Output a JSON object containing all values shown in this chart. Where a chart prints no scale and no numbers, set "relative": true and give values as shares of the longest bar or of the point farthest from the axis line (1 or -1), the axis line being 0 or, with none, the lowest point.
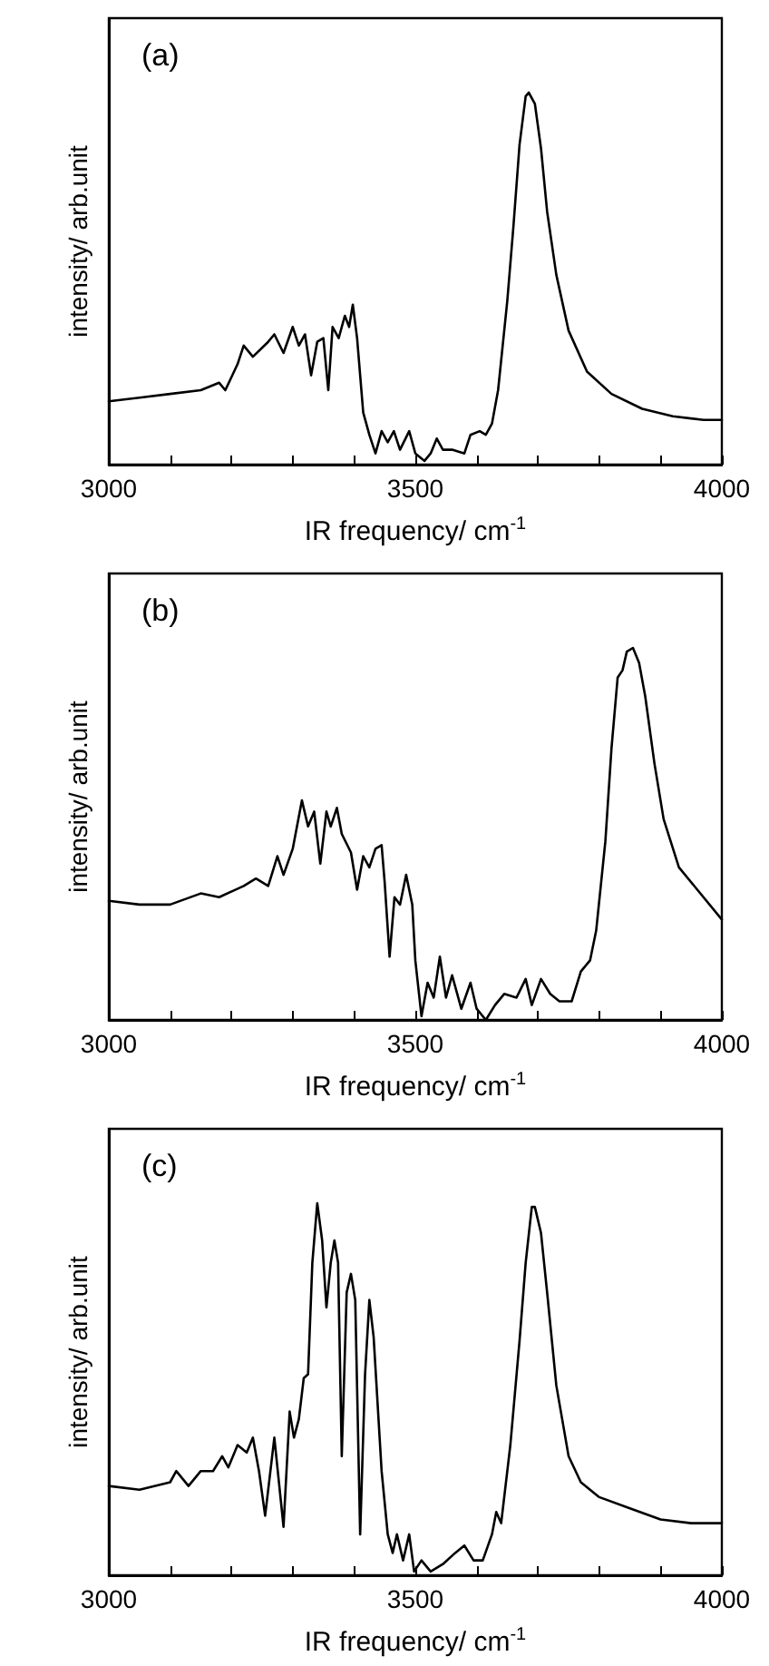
{
  "chart_data": [
    {
      "type": "line",
      "relative": true,
      "xlabel": "IR frequency/ cm$^{-1}$",
      "ylabel": "intensity/ arb.unit",
      "annotations": [
        "(a)"
      ],
      "xlim": [
        3000,
        4000
      ],
      "xticks": [
        3000,
        {
          "value": 3100,
          "label": null
        },
        {
          "value": 3200,
          "label": null
        },
        {
          "value": 3300,
          "label": null
        },
        {
          "value": 3400,
          "label": null
        },
        3500,
        {
          "value": 3600,
          "label": null
        },
        {
          "value": 3700,
          "label": null
        },
        {
          "value": 3800,
          "label": null
        },
        {
          "value": 3900,
          "label": null
        },
        4000
      ],
      "marker": "none",
      "line_style": "solid",
      "series": [
        {
          "color": "#000000",
          "x": [
            3000,
            3050,
            3100,
            3150,
            3180,
            3190,
            3210,
            3220,
            3235,
            3260,
            3270,
            3285,
            3300,
            3310,
            3320,
            3330,
            3340,
            3350,
            3358,
            3365,
            3375,
            3385,
            3392,
            3398,
            3405,
            3415,
            3425,
            3435,
            3445,
            3455,
            3465,
            3475,
            3490,
            3500,
            3515,
            3525,
            3535,
            3545,
            3560,
            3580,
            3590,
            3605,
            3615,
            3625,
            3635,
            3650,
            3660,
            3670,
            3680,
            3685,
            3695,
            3705,
            3715,
            3730,
            3750,
            3780,
            3820,
            3870,
            3920,
            3970,
            4000
          ],
          "values": [
            0.17,
            0.18,
            0.19,
            0.2,
            0.22,
            0.2,
            0.27,
            0.32,
            0.29,
            0.33,
            0.35,
            0.3,
            0.37,
            0.32,
            0.35,
            0.24,
            0.33,
            0.34,
            0.2,
            0.37,
            0.34,
            0.4,
            0.37,
            0.43,
            0.34,
            0.14,
            0.08,
            0.03,
            0.09,
            0.06,
            0.09,
            0.04,
            0.09,
            0.03,
            0.01,
            0.03,
            0.07,
            0.04,
            0.04,
            0.03,
            0.08,
            0.09,
            0.08,
            0.11,
            0.2,
            0.44,
            0.64,
            0.86,
            0.99,
            1.0,
            0.97,
            0.85,
            0.68,
            0.51,
            0.36,
            0.25,
            0.19,
            0.15,
            0.13,
            0.12,
            0.12
          ]
        }
      ]
    },
    {
      "type": "line",
      "relative": true,
      "xlabel": "IR frequency/ cm$^{-1}$",
      "ylabel": "intensity/ arb.unit",
      "annotations": [
        "(b)"
      ],
      "xlim": [
        3000,
        4000
      ],
      "xticks": [
        3000,
        {
          "value": 3100,
          "label": null
        },
        {
          "value": 3200,
          "label": null
        },
        {
          "value": 3300,
          "label": null
        },
        {
          "value": 3400,
          "label": null
        },
        3500,
        {
          "value": 3600,
          "label": null
        },
        {
          "value": 3700,
          "label": null
        },
        {
          "value": 3800,
          "label": null
        },
        {
          "value": 3900,
          "label": null
        },
        4000
      ],
      "marker": "none",
      "line_style": "solid",
      "series": [
        {
          "color": "#000000",
          "x": [
            3000,
            3050,
            3100,
            3150,
            3180,
            3220,
            3240,
            3260,
            3275,
            3285,
            3300,
            3315,
            3325,
            3335,
            3345,
            3355,
            3362,
            3372,
            3380,
            3395,
            3405,
            3415,
            3425,
            3435,
            3445,
            3450,
            3458,
            3466,
            3475,
            3485,
            3495,
            3500,
            3510,
            3520,
            3530,
            3540,
            3550,
            3560,
            3575,
            3590,
            3600,
            3615,
            3630,
            3645,
            3665,
            3680,
            3690,
            3705,
            3720,
            3735,
            3755,
            3770,
            3785,
            3795,
            3810,
            3820,
            3830,
            3838,
            3845,
            3855,
            3865,
            3875,
            3890,
            3905,
            3930,
            3960,
            4000
          ],
          "values": [
            0.32,
            0.31,
            0.31,
            0.34,
            0.33,
            0.36,
            0.38,
            0.36,
            0.44,
            0.39,
            0.46,
            0.59,
            0.52,
            0.56,
            0.42,
            0.56,
            0.52,
            0.57,
            0.5,
            0.45,
            0.35,
            0.44,
            0.41,
            0.46,
            0.47,
            0.37,
            0.17,
            0.33,
            0.31,
            0.39,
            0.31,
            0.16,
            0.01,
            0.1,
            0.06,
            0.17,
            0.06,
            0.12,
            0.03,
            0.1,
            0.03,
            0.0,
            0.04,
            0.07,
            0.06,
            0.11,
            0.04,
            0.11,
            0.07,
            0.05,
            0.05,
            0.13,
            0.16,
            0.24,
            0.48,
            0.73,
            0.92,
            0.94,
            0.99,
            1.0,
            0.96,
            0.87,
            0.69,
            0.54,
            0.41,
            0.35,
            0.27
          ]
        }
      ]
    },
    {
      "type": "line",
      "relative": true,
      "xlabel": "IR frequency/ cm$^{-1}$",
      "ylabel": "intensity/ arb.unit",
      "annotations": [
        "(c)"
      ],
      "xlim": [
        3000,
        4000
      ],
      "xticks": [
        3000,
        {
          "value": 3100,
          "label": null
        },
        {
          "value": 3200,
          "label": null
        },
        {
          "value": 3300,
          "label": null
        },
        {
          "value": 3400,
          "label": null
        },
        3500,
        {
          "value": 3600,
          "label": null
        },
        {
          "value": 3700,
          "label": null
        },
        {
          "value": 3800,
          "label": null
        },
        {
          "value": 3900,
          "label": null
        },
        4000
      ],
      "marker": "none",
      "line_style": "solid",
      "series": [
        {
          "color": "#000000",
          "x": [
            3000,
            3050,
            3100,
            3110,
            3130,
            3150,
            3170,
            3185,
            3195,
            3210,
            3225,
            3235,
            3245,
            3255,
            3270,
            3285,
            3295,
            3302,
            3310,
            3318,
            3325,
            3332,
            3340,
            3348,
            3355,
            3362,
            3368,
            3374,
            3380,
            3388,
            3395,
            3402,
            3410,
            3418,
            3425,
            3432,
            3445,
            3455,
            3463,
            3470,
            3480,
            3490,
            3498,
            3510,
            3525,
            3545,
            3565,
            3580,
            3595,
            3610,
            3625,
            3632,
            3640,
            3655,
            3670,
            3680,
            3690,
            3695,
            3705,
            3715,
            3730,
            3750,
            3770,
            3800,
            3850,
            3900,
            3950,
            4000
          ],
          "values": [
            0.24,
            0.23,
            0.25,
            0.28,
            0.24,
            0.28,
            0.28,
            0.32,
            0.29,
            0.35,
            0.33,
            0.37,
            0.28,
            0.16,
            0.37,
            0.13,
            0.44,
            0.37,
            0.42,
            0.53,
            0.54,
            0.84,
            1.0,
            0.9,
            0.72,
            0.84,
            0.9,
            0.84,
            0.32,
            0.76,
            0.81,
            0.74,
            0.11,
            0.54,
            0.74,
            0.64,
            0.28,
            0.11,
            0.06,
            0.11,
            0.04,
            0.11,
            0.01,
            0.04,
            0.01,
            0.03,
            0.06,
            0.08,
            0.04,
            0.04,
            0.11,
            0.17,
            0.14,
            0.35,
            0.63,
            0.84,
            0.99,
            0.99,
            0.92,
            0.76,
            0.51,
            0.32,
            0.25,
            0.21,
            0.18,
            0.15,
            0.14,
            0.14
          ]
        }
      ]
    }
  ]
}
